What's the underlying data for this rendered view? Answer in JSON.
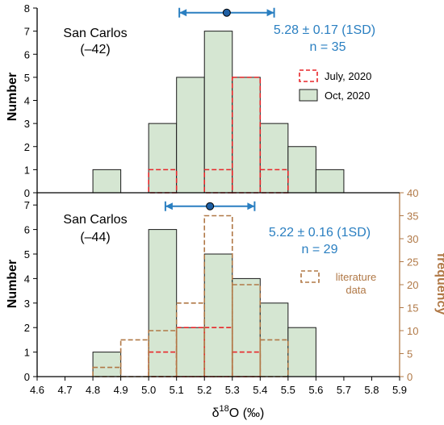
{
  "chart_data": [
    {
      "type": "bar",
      "panel": "top",
      "bin_width": 0.1,
      "xlim": [
        4.6,
        5.9
      ],
      "ylim": [
        0,
        8
      ],
      "ylabel": "Number",
      "yticks": [
        0,
        1,
        2,
        3,
        4,
        5,
        6,
        7,
        8
      ],
      "sample_label": [
        "San Carlos",
        "(–42)"
      ],
      "stat_label": "5.28 ± 0.17 (1SD)",
      "n_label": "n = 35",
      "mean_marker": {
        "mean": 5.28,
        "sd": 0.17,
        "y": 7.8
      },
      "legend": [
        "July, 2020",
        "Oct, 2020"
      ],
      "series": [
        {
          "name": "Oct, 2020",
          "style": "solid-green",
          "bins": [
            [
              4.8,
              1
            ],
            [
              5.0,
              3
            ],
            [
              5.1,
              5
            ],
            [
              5.2,
              7
            ],
            [
              5.3,
              5
            ],
            [
              5.4,
              3
            ],
            [
              5.5,
              2
            ],
            [
              5.6,
              1
            ]
          ]
        },
        {
          "name": "July, 2020",
          "style": "dashed-red",
          "bins": [
            [
              5.0,
              1
            ],
            [
              5.2,
              1
            ],
            [
              5.3,
              5
            ],
            [
              5.4,
              1
            ]
          ]
        }
      ]
    },
    {
      "type": "bar",
      "panel": "bottom",
      "bin_width": 0.1,
      "xlim": [
        4.6,
        5.9
      ],
      "ylim": [
        0,
        7.5
      ],
      "ylabel": "Number",
      "yticks": [
        0,
        1,
        2,
        3,
        4,
        5,
        6,
        7
      ],
      "y2label": "frequency",
      "y2lim": [
        0,
        40
      ],
      "y2ticks": [
        0,
        5,
        10,
        15,
        20,
        25,
        30,
        35,
        40
      ],
      "sample_label": [
        "San Carlos",
        "(–44)"
      ],
      "stat_label": "5.22 ± 0.16 (1SD)",
      "n_label": "n = 29",
      "mean_marker": {
        "mean": 5.22,
        "sd": 0.16,
        "y": 6.95
      },
      "legend": [
        "literature",
        "data"
      ],
      "series": [
        {
          "name": "Oct, 2020",
          "style": "solid-green",
          "bins": [
            [
              4.8,
              1
            ],
            [
              5.0,
              6
            ],
            [
              5.1,
              2
            ],
            [
              5.2,
              5
            ],
            [
              5.3,
              4
            ],
            [
              5.4,
              3
            ],
            [
              5.5,
              2
            ]
          ]
        },
        {
          "name": "July, 2020",
          "style": "dashed-red",
          "bins": [
            [
              5.0,
              1
            ],
            [
              5.1,
              2
            ],
            [
              5.2,
              2
            ],
            [
              5.3,
              1
            ]
          ]
        },
        {
          "name": "literature data",
          "style": "dashed-brown",
          "axis": "right",
          "bins": [
            [
              4.8,
              2
            ],
            [
              4.9,
              8
            ],
            [
              5.0,
              10
            ],
            [
              5.1,
              16
            ],
            [
              5.2,
              35
            ],
            [
              5.3,
              20
            ],
            [
              5.4,
              8
            ]
          ]
        }
      ]
    }
  ],
  "xaxis": {
    "label_prefix": "δ",
    "label_sup": "18",
    "label_suffix": "O (‰)",
    "ticks": [
      "4.6",
      "4.7",
      "4.8",
      "4.9",
      "5.0",
      "5.1",
      "5.2",
      "5.3",
      "5.4",
      "5.5",
      "5.6",
      "5.7",
      "5.8",
      "5.9"
    ]
  },
  "colors": {
    "bar_fill": "#d5e6d2",
    "bar_edge": "#1a1a1a",
    "july_edge": "#e8262a",
    "literature": "#b07846",
    "stat_blue": "#2a7fc1",
    "marker_fill": "#1f5fa3"
  }
}
